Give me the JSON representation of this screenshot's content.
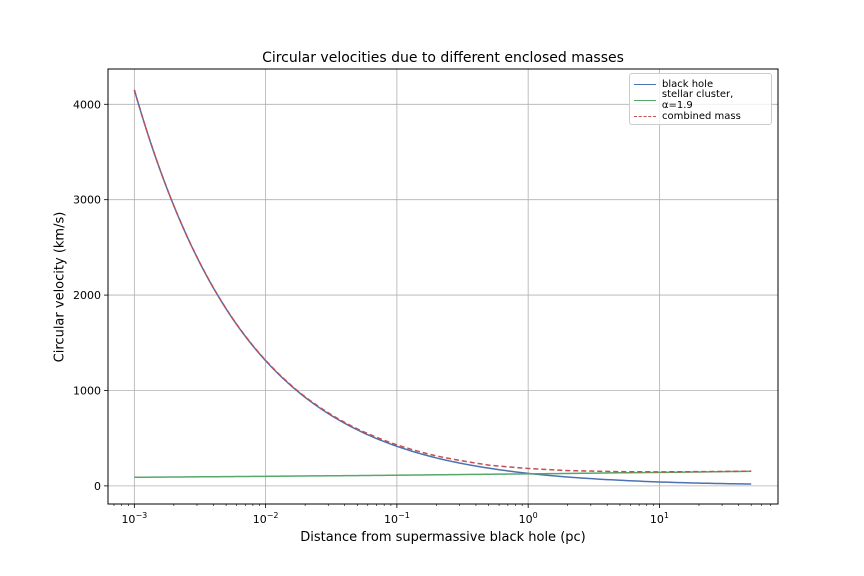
{
  "chart_data": {
    "type": "line",
    "title": "Circular velocities due to different enclosed masses",
    "xlabel": "Distance from supermassive black hole (pc)",
    "ylabel": "Circular velocity (km/s)",
    "xscale": "log",
    "xlim": [
      0.00063,
      80
    ],
    "ylim": [
      -190,
      4370
    ],
    "grid": true,
    "legend_position": "top-right",
    "x_ticks": [
      {
        "value": 0.001,
        "base": "10",
        "exp": "−3"
      },
      {
        "value": 0.01,
        "base": "10",
        "exp": "−2"
      },
      {
        "value": 0.1,
        "base": "10",
        "exp": "−1"
      },
      {
        "value": 1,
        "base": "10",
        "exp": "0"
      },
      {
        "value": 10,
        "base": "10",
        "exp": "1"
      }
    ],
    "y_ticks": [
      {
        "value": 0,
        "label": "0"
      },
      {
        "value": 1000,
        "label": "1000"
      },
      {
        "value": 2000,
        "label": "2000"
      },
      {
        "value": 3000,
        "label": "3000"
      },
      {
        "value": 4000,
        "label": "4000"
      }
    ],
    "series": [
      {
        "name": "black hole",
        "color": "#4c72b0",
        "dash": "solid",
        "x": [
          0.001,
          0.002,
          0.005,
          0.01,
          0.02,
          0.05,
          0.1,
          0.2,
          0.5,
          1,
          2,
          5,
          10,
          20,
          50
        ],
        "y": [
          4150,
          2935,
          1856,
          1312,
          928,
          587,
          415,
          293,
          186,
          131,
          93,
          59,
          41,
          29,
          19
        ]
      },
      {
        "name": "stellar cluster, α=1.9",
        "color": "#55a868",
        "dash": "solid",
        "x": [
          0.001,
          0.002,
          0.005,
          0.01,
          0.02,
          0.05,
          0.1,
          0.2,
          0.5,
          1,
          2,
          5,
          10,
          20,
          50
        ],
        "y": [
          90,
          93,
          97,
          100,
          104,
          108,
          112,
          116,
          122,
          126,
          130,
          137,
          141,
          146,
          153
        ]
      },
      {
        "name": "combined mass",
        "color": "#c44e52",
        "dash": "dashed",
        "x": [
          0.001,
          0.002,
          0.005,
          0.01,
          0.02,
          0.05,
          0.1,
          0.2,
          0.5,
          1,
          2,
          5,
          10,
          20,
          50
        ],
        "y": [
          4151,
          2936,
          1858,
          1316,
          934,
          597,
          430,
          314,
          218,
          182,
          160,
          149,
          147,
          149,
          154
        ]
      }
    ]
  }
}
